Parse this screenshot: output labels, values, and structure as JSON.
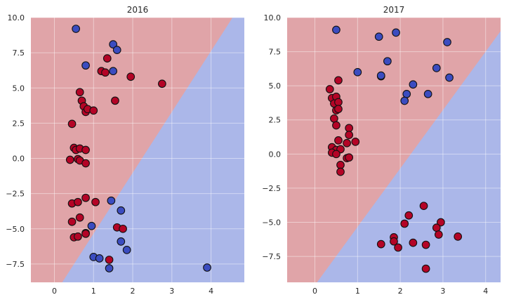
{
  "chart_data": [
    {
      "type": "scatter",
      "title": "2016",
      "xlim": [
        -0.6,
        4.85
      ],
      "ylim": [
        -8.8,
        10.0
      ],
      "xticks": [
        0,
        1,
        2,
        3,
        4
      ],
      "yticks": [
        -7.5,
        -5.0,
        -2.5,
        0.0,
        2.5,
        5.0,
        7.5,
        10.0
      ],
      "ytick_labels": [
        "−7.5",
        "−5.0",
        "−2.5",
        "0.0",
        "2.5",
        "5.0",
        "7.5",
        "10.0"
      ],
      "grid": true,
      "decision_boundary": {
        "x1": 0.2,
        "y1": -8.8,
        "x2": 4.55,
        "y2": 10.0
      },
      "colors": {
        "red": "#b40426",
        "blue": "#3b4cc0",
        "red_region": "#e0a4a8",
        "blue_region": "#abb7e9"
      },
      "series": [
        {
          "class": "red",
          "points": [
            [
              1.35,
              7.1
            ],
            [
              1.2,
              6.2
            ],
            [
              1.3,
              6.1
            ],
            [
              1.95,
              5.8
            ],
            [
              2.75,
              5.3
            ],
            [
              0.65,
              4.7
            ],
            [
              0.7,
              4.1
            ],
            [
              1.55,
              4.1
            ],
            [
              0.75,
              3.7
            ],
            [
              0.8,
              3.3
            ],
            [
              0.85,
              3.5
            ],
            [
              1.0,
              3.4
            ],
            [
              0.45,
              2.45
            ],
            [
              0.5,
              0.75
            ],
            [
              0.55,
              0.6
            ],
            [
              0.65,
              0.7
            ],
            [
              0.8,
              0.6
            ],
            [
              0.4,
              -0.1
            ],
            [
              0.6,
              -0.05
            ],
            [
              0.65,
              -0.15
            ],
            [
              0.8,
              -0.35
            ],
            [
              0.8,
              -2.8
            ],
            [
              1.05,
              -3.1
            ],
            [
              0.45,
              -3.2
            ],
            [
              0.6,
              -3.1
            ],
            [
              0.65,
              -4.2
            ],
            [
              0.45,
              -4.5
            ],
            [
              0.8,
              -5.3
            ],
            [
              0.8,
              -5.35
            ],
            [
              0.5,
              -5.6
            ],
            [
              0.6,
              -5.55
            ],
            [
              1.6,
              -4.9
            ],
            [
              1.75,
              -5.0
            ],
            [
              1.4,
              -7.2
            ]
          ]
        },
        {
          "class": "blue",
          "points": [
            [
              0.55,
              9.2
            ],
            [
              1.5,
              8.1
            ],
            [
              1.6,
              7.7
            ],
            [
              0.8,
              6.6
            ],
            [
              1.5,
              6.2
            ],
            [
              1.45,
              -3.0
            ],
            [
              1.7,
              -3.7
            ],
            [
              0.95,
              -4.8
            ],
            [
              1.7,
              -5.9
            ],
            [
              1.85,
              -6.5
            ],
            [
              1.0,
              -7.0
            ],
            [
              1.15,
              -7.1
            ],
            [
              1.4,
              -7.8
            ],
            [
              3.9,
              -7.75
            ]
          ]
        }
      ]
    },
    {
      "type": "scatter",
      "title": "2017",
      "xlim": [
        -0.65,
        4.35
      ],
      "ylim": [
        -9.4,
        10.0
      ],
      "xticks": [
        0,
        1,
        2,
        3,
        4
      ],
      "yticks": [
        -7.5,
        -5.0,
        -2.5,
        0.0,
        2.5,
        5.0,
        7.5,
        10.0
      ],
      "ytick_labels": [
        "−7.5",
        "−5.0",
        "−2.5",
        "0.0",
        "2.5",
        "5.0",
        "7.5",
        "10.0"
      ],
      "grid": true,
      "decision_boundary": {
        "x1": 0.05,
        "y1": -9.4,
        "x2": 4.35,
        "y2": 9.0
      },
      "colors": {
        "red": "#b40426",
        "blue": "#3b4cc0",
        "red_region": "#e0a4a8",
        "blue_region": "#abb7e9"
      },
      "series": [
        {
          "class": "red",
          "points": [
            [
              0.55,
              5.4
            ],
            [
              0.35,
              4.75
            ],
            [
              0.4,
              4.1
            ],
            [
              0.5,
              4.2
            ],
            [
              0.45,
              3.7
            ],
            [
              0.55,
              3.8
            ],
            [
              0.5,
              3.2
            ],
            [
              0.55,
              3.3
            ],
            [
              0.45,
              2.6
            ],
            [
              0.5,
              2.1
            ],
            [
              0.8,
              1.9
            ],
            [
              0.8,
              1.4
            ],
            [
              0.55,
              1.0
            ],
            [
              0.75,
              0.8
            ],
            [
              0.95,
              0.9
            ],
            [
              0.4,
              0.5
            ],
            [
              0.5,
              0.3
            ],
            [
              0.6,
              0.35
            ],
            [
              0.4,
              0.1
            ],
            [
              0.5,
              0.0
            ],
            [
              0.75,
              -0.3
            ],
            [
              0.8,
              -0.25
            ],
            [
              0.6,
              -0.8
            ],
            [
              0.6,
              -1.3
            ],
            [
              2.55,
              -3.8
            ],
            [
              2.2,
              -4.5
            ],
            [
              2.1,
              -5.1
            ],
            [
              2.95,
              -5.0
            ],
            [
              2.85,
              -5.4
            ],
            [
              2.9,
              -5.9
            ],
            [
              3.35,
              -6.05
            ],
            [
              1.85,
              -6.1
            ],
            [
              1.85,
              -6.4
            ],
            [
              2.3,
              -6.5
            ],
            [
              1.55,
              -6.6
            ],
            [
              2.6,
              -6.65
            ],
            [
              1.95,
              -6.85
            ],
            [
              2.6,
              -8.4
            ]
          ]
        },
        {
          "class": "blue",
          "points": [
            [
              0.5,
              9.1
            ],
            [
              1.9,
              8.9
            ],
            [
              1.5,
              8.6
            ],
            [
              3.1,
              8.2
            ],
            [
              1.7,
              6.8
            ],
            [
              2.85,
              6.3
            ],
            [
              1.0,
              6.0
            ],
            [
              1.55,
              5.7
            ],
            [
              1.55,
              5.75
            ],
            [
              3.15,
              5.6
            ],
            [
              2.3,
              5.1
            ],
            [
              2.15,
              4.4
            ],
            [
              2.65,
              4.4
            ],
            [
              2.1,
              3.9
            ]
          ]
        }
      ]
    }
  ]
}
